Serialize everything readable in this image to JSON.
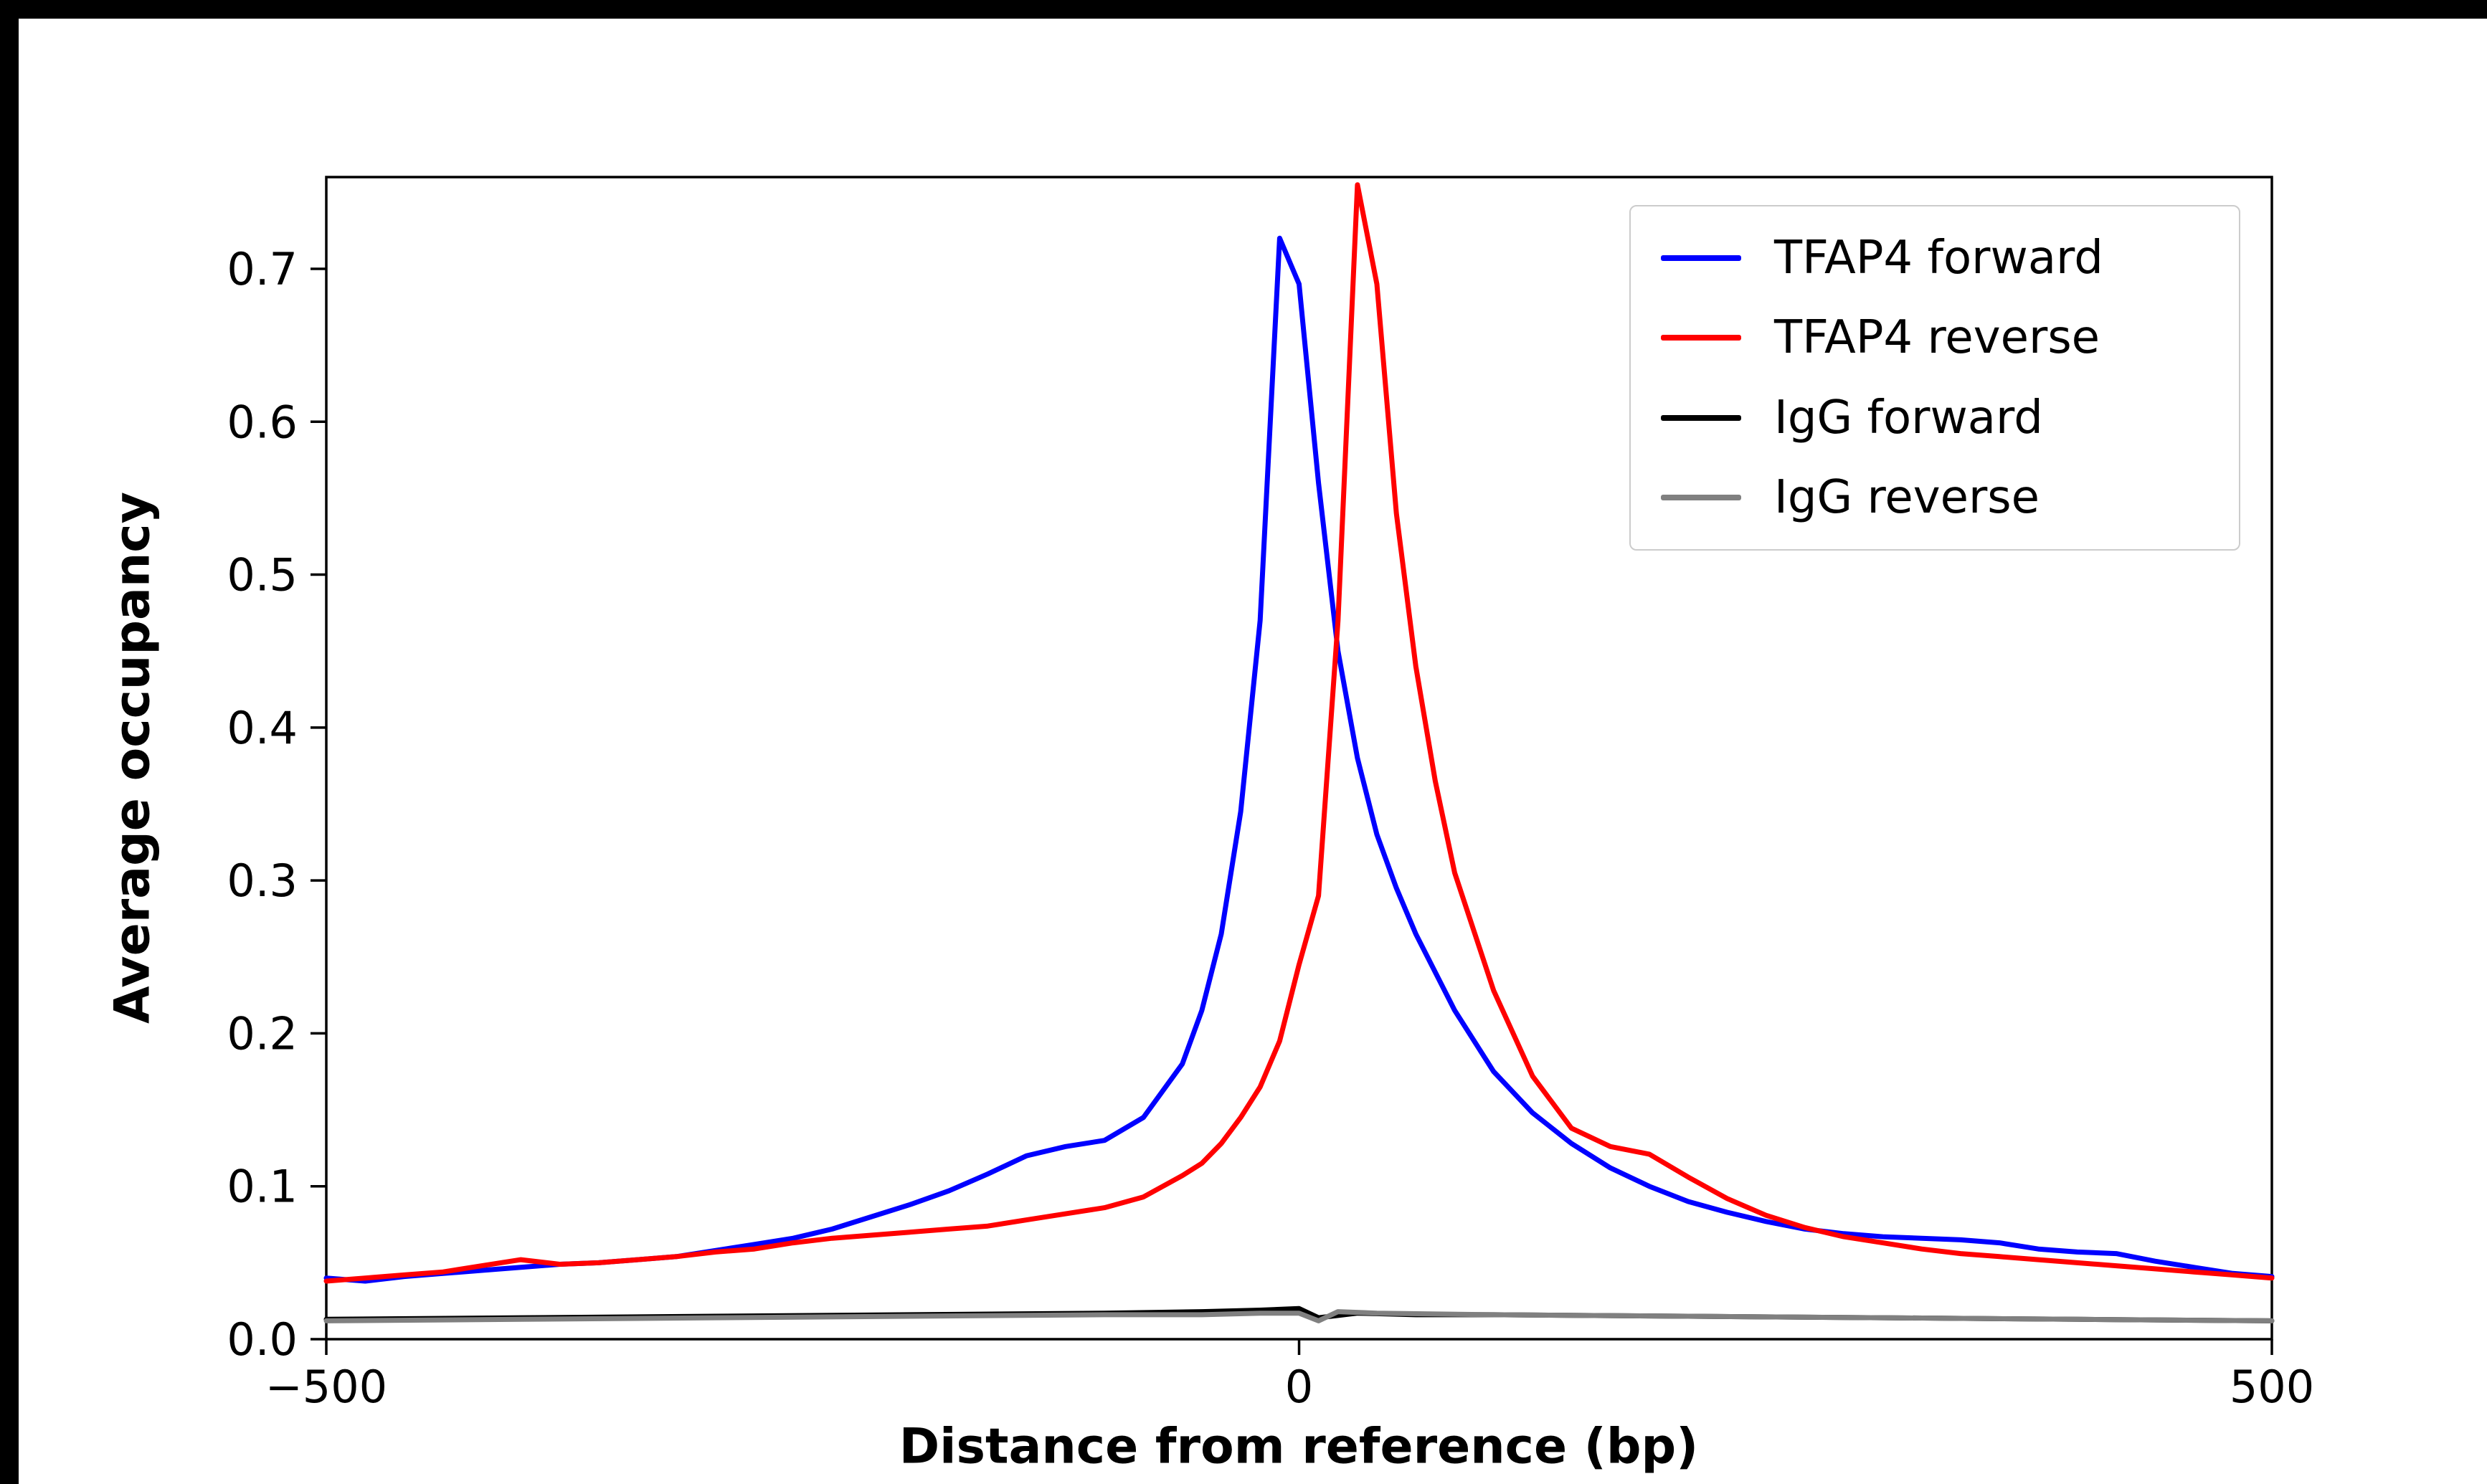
{
  "figure": {
    "background": "#ffffff",
    "frame_color": "#000000"
  },
  "chart_data": {
    "type": "line",
    "title": "",
    "xlabel": "Distance from reference (bp)",
    "ylabel": "Average occupancy",
    "xlim": [
      -500,
      500
    ],
    "ylim": [
      0,
      0.76
    ],
    "grid": false,
    "legend_position": "upper right",
    "xticks": {
      "values": [
        -500,
        0,
        500
      ],
      "labels": [
        "−500",
        "0",
        "500"
      ]
    },
    "yticks": {
      "values": [
        0.0,
        0.1,
        0.2,
        0.3,
        0.4,
        0.5,
        0.6,
        0.7
      ],
      "labels": [
        "0.0",
        "0.1",
        "0.2",
        "0.3",
        "0.4",
        "0.5",
        "0.6",
        "0.7"
      ]
    },
    "series": [
      {
        "name": "TFAP4 forward",
        "color": "#0000ff",
        "x": [
          -500,
          -480,
          -460,
          -440,
          -420,
          -400,
          -380,
          -360,
          -340,
          -320,
          -300,
          -280,
          -260,
          -240,
          -220,
          -200,
          -180,
          -160,
          -140,
          -120,
          -100,
          -80,
          -60,
          -50,
          -40,
          -30,
          -20,
          -10,
          0,
          10,
          20,
          30,
          40,
          50,
          60,
          80,
          100,
          120,
          140,
          160,
          180,
          200,
          220,
          240,
          260,
          280,
          300,
          320,
          340,
          360,
          380,
          400,
          420,
          440,
          460,
          480,
          500
        ],
        "y": [
          0.04,
          0.038,
          0.041,
          0.043,
          0.045,
          0.047,
          0.049,
          0.05,
          0.052,
          0.054,
          0.058,
          0.062,
          0.066,
          0.072,
          0.08,
          0.088,
          0.097,
          0.108,
          0.12,
          0.126,
          0.13,
          0.145,
          0.18,
          0.215,
          0.265,
          0.345,
          0.47,
          0.72,
          0.69,
          0.56,
          0.45,
          0.38,
          0.33,
          0.295,
          0.265,
          0.215,
          0.175,
          0.148,
          0.128,
          0.112,
          0.1,
          0.09,
          0.083,
          0.077,
          0.072,
          0.069,
          0.067,
          0.066,
          0.065,
          0.063,
          0.059,
          0.057,
          0.056,
          0.051,
          0.047,
          0.043,
          0.041
        ]
      },
      {
        "name": "TFAP4 reverse",
        "color": "#ff0000",
        "x": [
          -500,
          -480,
          -460,
          -440,
          -420,
          -400,
          -380,
          -360,
          -340,
          -320,
          -300,
          -280,
          -260,
          -240,
          -220,
          -200,
          -180,
          -160,
          -140,
          -120,
          -100,
          -80,
          -60,
          -50,
          -40,
          -30,
          -20,
          -10,
          0,
          10,
          20,
          30,
          40,
          50,
          60,
          70,
          80,
          100,
          120,
          140,
          160,
          180,
          200,
          220,
          240,
          260,
          280,
          300,
          320,
          340,
          360,
          380,
          400,
          420,
          440,
          460,
          480,
          500
        ],
        "y": [
          0.038,
          0.04,
          0.042,
          0.044,
          0.048,
          0.052,
          0.049,
          0.05,
          0.052,
          0.054,
          0.057,
          0.059,
          0.063,
          0.066,
          0.068,
          0.07,
          0.072,
          0.074,
          0.078,
          0.082,
          0.086,
          0.093,
          0.107,
          0.115,
          0.128,
          0.145,
          0.165,
          0.195,
          0.245,
          0.29,
          0.47,
          0.755,
          0.69,
          0.54,
          0.44,
          0.365,
          0.305,
          0.228,
          0.172,
          0.138,
          0.126,
          0.121,
          0.106,
          0.092,
          0.081,
          0.073,
          0.067,
          0.063,
          0.059,
          0.056,
          0.054,
          0.052,
          0.05,
          0.048,
          0.046,
          0.044,
          0.042,
          0.04
        ]
      },
      {
        "name": "IgG forward",
        "color": "#000000",
        "x": [
          -500,
          -400,
          -300,
          -200,
          -100,
          -50,
          -20,
          0,
          10,
          30,
          60,
          100,
          200,
          300,
          400,
          500
        ],
        "y": [
          0.013,
          0.014,
          0.015,
          0.016,
          0.017,
          0.018,
          0.019,
          0.02,
          0.014,
          0.017,
          0.016,
          0.016,
          0.015,
          0.014,
          0.013,
          0.012
        ]
      },
      {
        "name": "IgG reverse",
        "color": "#808080",
        "x": [
          -500,
          -400,
          -300,
          -200,
          -100,
          -50,
          -20,
          0,
          10,
          20,
          40,
          100,
          200,
          300,
          400,
          500
        ],
        "y": [
          0.012,
          0.013,
          0.014,
          0.015,
          0.016,
          0.016,
          0.017,
          0.017,
          0.012,
          0.018,
          0.017,
          0.016,
          0.015,
          0.014,
          0.013,
          0.012
        ]
      }
    ]
  }
}
